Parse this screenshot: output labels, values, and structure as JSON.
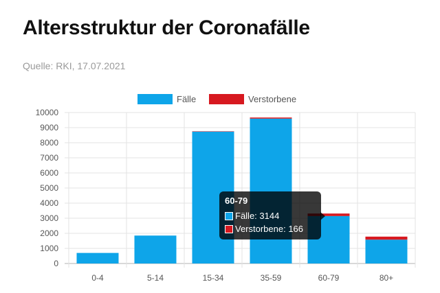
{
  "header": {
    "title": "Altersstruktur der Coronafälle",
    "source": "Quelle: RKI, 17.07.2021"
  },
  "chart_data": {
    "type": "bar",
    "stacked": true,
    "categories": [
      "0-4",
      "5-14",
      "15-34",
      "35-59",
      "60-79",
      "80+"
    ],
    "series": [
      {
        "name": "Fälle",
        "color": "#0ea5e9",
        "values": [
          700,
          1850,
          8750,
          9600,
          3144,
          1580
        ]
      },
      {
        "name": "Verstorbene",
        "color": "#d71920",
        "values": [
          0,
          0,
          5,
          70,
          166,
          200
        ]
      }
    ],
    "ylim": [
      0,
      10000
    ],
    "yticks": [
      0,
      1000,
      2000,
      3000,
      4000,
      5000,
      6000,
      7000,
      8000,
      9000,
      10000
    ],
    "grid": true,
    "legend": "top"
  },
  "tooltip": {
    "title": "60-79",
    "rows": [
      {
        "label": "Fälle: 3144",
        "color": "#0ea5e9"
      },
      {
        "label": "Verstorbene: 166",
        "color": "#d71920"
      }
    ]
  }
}
